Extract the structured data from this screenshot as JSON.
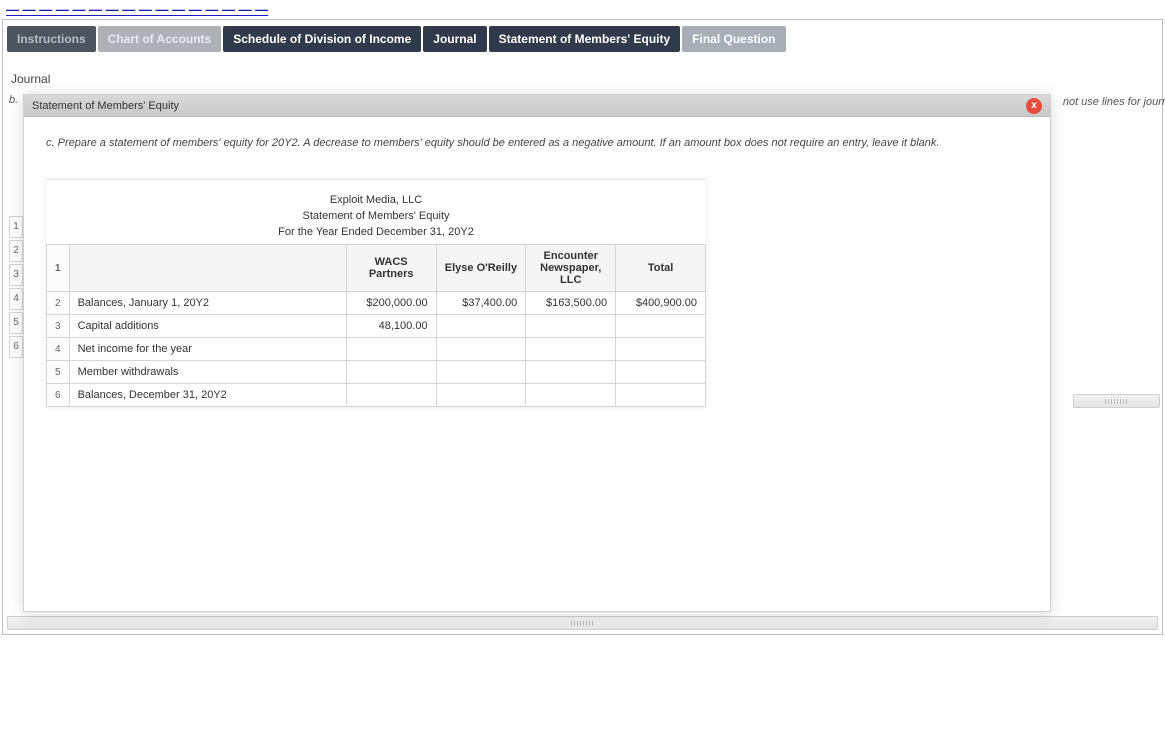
{
  "page_link_text": "— — — — — — — — — — — — — — — —",
  "tabs": [
    {
      "label": "Instructions",
      "style": "tab-dark-muted"
    },
    {
      "label": "Chart of Accounts",
      "style": "tab-light-muted"
    },
    {
      "label": "Schedule of Division of Income",
      "style": "tab-dark"
    },
    {
      "label": "Journal",
      "style": "tab-dark"
    },
    {
      "label": "Statement of Members' Equity",
      "style": "tab-dark"
    },
    {
      "label": "Final Question",
      "style": "tab-grey"
    }
  ],
  "background": {
    "journal_label": "Journal",
    "b_label": "b.",
    "right_hint": "not use lines for journ",
    "rownums": [
      "1",
      "2",
      "3",
      "4",
      "5",
      "6"
    ]
  },
  "modal": {
    "title": "Statement of Members' Equity",
    "close_glyph": "x",
    "instruction": "c. Prepare a statement of members' equity for 20Y2. A decrease to members' equity should be entered as a negative amount. If an amount box does not require an entry, leave it blank.",
    "statement_header": {
      "company": "Exploit Media, LLC",
      "title": "Statement of Members' Equity",
      "period": "For the Year Ended December 31, 20Y2"
    },
    "columns": {
      "rownum_header": "1",
      "blank_header": "",
      "c1": "WACS Partners",
      "c2": "Elyse O'Reilly",
      "c3": "Encounter Newspaper, LLC",
      "c4": "Total"
    },
    "rows": [
      {
        "n": "2",
        "label": "Balances, January 1, 20Y2",
        "c1": "$200,000.00",
        "c2": "$37,400.00",
        "c3": "$163,500.00",
        "c4": "$400,900.00"
      },
      {
        "n": "3",
        "label": "Capital additions",
        "c1": "48,100.00",
        "c2": "",
        "c3": "",
        "c4": ""
      },
      {
        "n": "4",
        "label": "Net income for the year",
        "c1": "",
        "c2": "",
        "c3": "",
        "c4": ""
      },
      {
        "n": "5",
        "label": "Member withdrawals",
        "c1": "",
        "c2": "",
        "c3": "",
        "c4": ""
      },
      {
        "n": "6",
        "label": "Balances, December 31, 20Y2",
        "c1": "",
        "c2": "",
        "c3": "",
        "c4": ""
      }
    ]
  },
  "colors": {
    "tab_dark": "#2f3a4a",
    "tab_grey": "#a7aeb6",
    "close_red": "#e74c3c",
    "border": "#d5d5d5"
  }
}
